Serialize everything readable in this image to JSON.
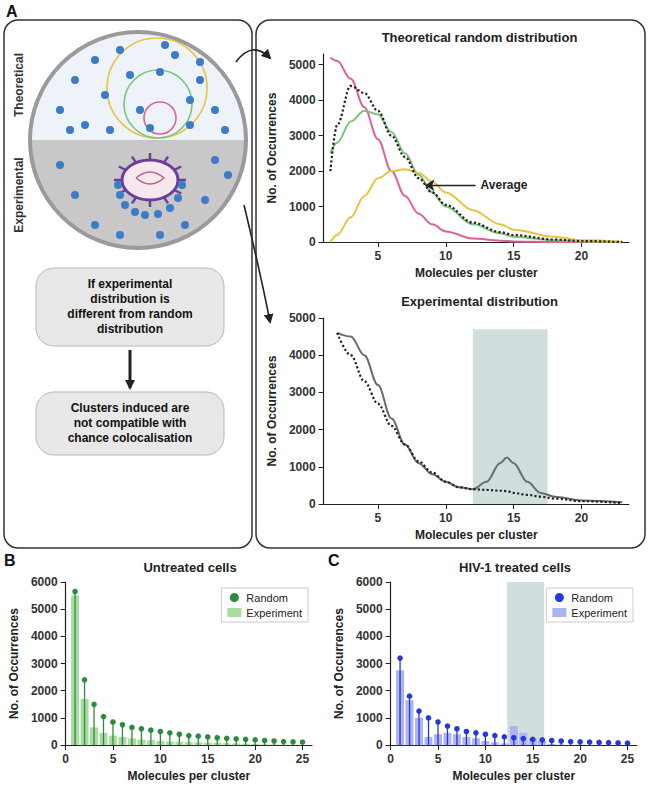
{
  "diagram": {
    "panel": "A",
    "side_labels": [
      "Theoretical",
      "Experimental"
    ],
    "boxes": [
      "If experimental distribution is different from random distribution",
      "Clusters induced are not compatible with chance colocalisation"
    ]
  },
  "chart_data": [
    {
      "type": "line",
      "title": "Theoretical random distribution",
      "x_label": "Molecules per cluster",
      "y_label": "No. of Occurrences",
      "x": [
        1.5,
        2,
        3,
        4,
        5,
        6,
        7,
        8,
        9,
        10,
        12,
        14,
        15,
        18,
        20,
        23
      ],
      "series": [
        {
          "color": "#e0609a",
          "line_style": "solid",
          "values": [
            5200,
            5100,
            4600,
            3800,
            2900,
            2000,
            1300,
            800,
            500,
            300,
            100,
            40,
            20,
            5,
            0,
            0
          ]
        },
        {
          "color": "#7cc47a",
          "line_style": "solid",
          "values": [
            2500,
            2800,
            3400,
            3700,
            3600,
            3100,
            2500,
            1900,
            1400,
            1000,
            500,
            250,
            150,
            50,
            20,
            0
          ]
        },
        {
          "color": "#e8c440",
          "line_style": "solid",
          "values": [
            0,
            200,
            700,
            1300,
            1800,
            2000,
            2050,
            1950,
            1700,
            1400,
            900,
            500,
            350,
            150,
            50,
            10
          ]
        },
        {
          "name": "Average",
          "color": "#222222",
          "line_style": "dotted",
          "values": [
            2000,
            3300,
            4400,
            4200,
            3700,
            3000,
            2400,
            1800,
            1400,
            1050,
            550,
            280,
            200,
            70,
            30,
            0
          ]
        }
      ],
      "xlim": [
        1,
        23.5
      ],
      "xticks": [
        5,
        10,
        15,
        20
      ],
      "ylim": [
        0,
        5300
      ],
      "yticks": [
        0,
        1000,
        2000,
        3000,
        4000,
        5000
      ],
      "grid": false,
      "annotations": [
        {
          "text": "Average",
          "x": 12.2,
          "y": 1600,
          "target_x": 8.5,
          "target_y": 1600
        }
      ]
    },
    {
      "type": "line",
      "title": "Experimental distribution",
      "x_label": "Molecules per cluster",
      "y_label": "No. of Occurrences",
      "x": [
        2,
        3,
        4,
        5,
        6,
        7,
        8,
        9,
        10,
        11,
        12,
        13,
        14,
        14.5,
        15,
        16,
        17,
        18,
        20,
        23
      ],
      "series": [
        {
          "color": "#6b6b6b",
          "line_style": "solid",
          "values": [
            4600,
            4500,
            4000,
            3200,
            2300,
            1600,
            1100,
            800,
            600,
            450,
            400,
            600,
            1100,
            1250,
            1100,
            600,
            300,
            200,
            100,
            50
          ]
        },
        {
          "color": "#222222",
          "line_style": "dotted",
          "values": [
            4600,
            4000,
            3300,
            2700,
            2100,
            1600,
            1150,
            850,
            600,
            450,
            400,
            380,
            360,
            350,
            300,
            250,
            200,
            150,
            80,
            30
          ]
        }
      ],
      "xlim": [
        1,
        23.5
      ],
      "xticks": [
        5,
        10,
        15,
        20
      ],
      "ylim": [
        0,
        5000
      ],
      "yticks": [
        0,
        1000,
        2000,
        3000,
        4000,
        5000
      ],
      "grid": false,
      "highlight_x": [
        12,
        17.5
      ],
      "highlight_y": [
        0,
        4700
      ]
    },
    {
      "type": "bar",
      "panel": "B",
      "title": "Untreated cells",
      "x_label": "Molecules per cluster",
      "y_label": "No. of Occurrences",
      "x": [
        1,
        2,
        3,
        4,
        5,
        6,
        7,
        8,
        9,
        10,
        11,
        12,
        13,
        14,
        15,
        16,
        17,
        18,
        19,
        20,
        21,
        22,
        23,
        24,
        25
      ],
      "series": [
        {
          "name": "Random",
          "type": "scatter",
          "marker": "stem",
          "color": "#2e8b3e",
          "values": [
            5650,
            2400,
            1500,
            1050,
            850,
            750,
            650,
            600,
            550,
            500,
            450,
            400,
            350,
            330,
            300,
            270,
            250,
            230,
            210,
            190,
            170,
            150,
            130,
            120,
            110
          ]
        },
        {
          "name": "Experiment",
          "type": "bar",
          "color": "#a9dba3",
          "values": [
            5500,
            1700,
            650,
            450,
            350,
            300,
            250,
            200,
            180,
            150,
            130,
            120,
            110,
            100,
            90,
            80,
            70,
            60,
            50,
            40,
            30,
            25,
            20,
            15,
            10
          ]
        }
      ],
      "xlim": [
        0,
        26
      ],
      "xticks": [
        0,
        5,
        10,
        15,
        20,
        25
      ],
      "ylim": [
        0,
        6000
      ],
      "yticks": [
        0,
        1000,
        2000,
        3000,
        4000,
        5000,
        6000
      ],
      "grid": false,
      "legend": "upper right"
    },
    {
      "type": "bar",
      "panel": "C",
      "title": "HIV-1 treated cells",
      "x_label": "Molecules per cluster",
      "y_label": "No. of Occurrences",
      "x": [
        1,
        2,
        3,
        4,
        5,
        6,
        7,
        8,
        9,
        10,
        11,
        12,
        13,
        14,
        15,
        16,
        17,
        18,
        19,
        20,
        21,
        22,
        23,
        24,
        25
      ],
      "series": [
        {
          "name": "Random",
          "type": "scatter",
          "marker": "stem",
          "color": "#2638d6",
          "values": [
            3200,
            1800,
            1250,
            1000,
            850,
            700,
            600,
            500,
            450,
            400,
            350,
            300,
            270,
            240,
            210,
            190,
            170,
            150,
            130,
            120,
            110,
            100,
            90,
            80,
            70
          ]
        },
        {
          "name": "Experiment",
          "type": "bar",
          "color": "#aeb4f2",
          "values": [
            2750,
            1650,
            1000,
            300,
            400,
            450,
            400,
            300,
            250,
            150,
            100,
            60,
            700,
            450,
            250,
            150,
            40,
            20,
            10,
            10,
            5,
            5,
            5,
            5,
            5
          ]
        }
      ],
      "xlim": [
        0,
        26
      ],
      "xticks": [
        0,
        5,
        10,
        15,
        20,
        25
      ],
      "ylim": [
        0,
        6000
      ],
      "yticks": [
        0,
        1000,
        2000,
        3000,
        4000,
        5000,
        6000
      ],
      "grid": false,
      "legend": "upper right",
      "highlight_x": [
        12.3,
        16.2
      ]
    }
  ]
}
